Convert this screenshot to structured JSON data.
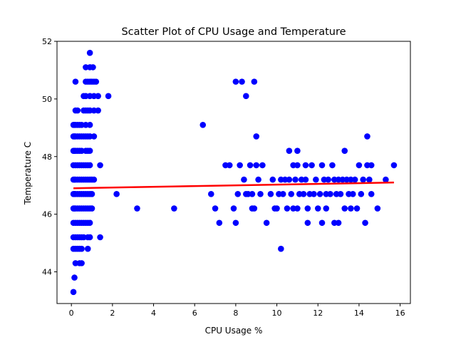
{
  "chart_data": {
    "type": "scatter",
    "title": "Scatter Plot of CPU Usage and Temperature",
    "xlabel": "CPU Usage %",
    "ylabel": "Temperature C",
    "xlim": [
      -0.7,
      16.5
    ],
    "ylim": [
      42.9,
      52.0
    ],
    "xticks": [
      0,
      2,
      4,
      6,
      8,
      10,
      12,
      14,
      16
    ],
    "yticks": [
      44,
      46,
      48,
      50,
      52
    ],
    "grid": false,
    "legend": "none",
    "colors": {
      "points": "#0000ff",
      "trend": "#ff0000",
      "axes": "#000000"
    },
    "series": [
      {
        "type": "scatter",
        "points": [
          [
            0.1,
            43.3
          ],
          [
            0.15,
            43.8
          ],
          [
            0.2,
            44.3
          ],
          [
            0.4,
            44.3
          ],
          [
            0.5,
            44.3
          ],
          [
            0.1,
            44.8
          ],
          [
            0.2,
            44.8
          ],
          [
            0.3,
            44.8
          ],
          [
            0.4,
            44.8
          ],
          [
            0.5,
            44.8
          ],
          [
            0.8,
            44.8
          ],
          [
            0.1,
            45.2
          ],
          [
            0.2,
            45.2
          ],
          [
            0.3,
            45.2
          ],
          [
            0.4,
            45.2
          ],
          [
            0.5,
            45.2
          ],
          [
            0.6,
            45.2
          ],
          [
            0.8,
            45.2
          ],
          [
            0.9,
            45.2
          ],
          [
            1.4,
            45.2
          ],
          [
            0.1,
            45.7
          ],
          [
            0.2,
            45.7
          ],
          [
            0.3,
            45.7
          ],
          [
            0.4,
            45.7
          ],
          [
            0.5,
            45.7
          ],
          [
            0.6,
            45.7
          ],
          [
            0.7,
            45.7
          ],
          [
            0.8,
            45.7
          ],
          [
            0.9,
            45.7
          ],
          [
            0.1,
            46.2
          ],
          [
            0.15,
            46.2
          ],
          [
            0.2,
            46.2
          ],
          [
            0.3,
            46.2
          ],
          [
            0.4,
            46.2
          ],
          [
            0.5,
            46.2
          ],
          [
            0.6,
            46.2
          ],
          [
            0.7,
            46.2
          ],
          [
            0.8,
            46.2
          ],
          [
            0.9,
            46.2
          ],
          [
            1.0,
            46.2
          ],
          [
            0.1,
            46.7
          ],
          [
            0.15,
            46.7
          ],
          [
            0.2,
            46.7
          ],
          [
            0.3,
            46.7
          ],
          [
            0.4,
            46.7
          ],
          [
            0.5,
            46.7
          ],
          [
            0.6,
            46.7
          ],
          [
            0.7,
            46.7
          ],
          [
            0.8,
            46.7
          ],
          [
            0.9,
            46.7
          ],
          [
            1.0,
            46.7
          ],
          [
            0.1,
            47.2
          ],
          [
            0.15,
            47.2
          ],
          [
            0.2,
            47.2
          ],
          [
            0.3,
            47.2
          ],
          [
            0.4,
            47.2
          ],
          [
            0.5,
            47.2
          ],
          [
            0.6,
            47.2
          ],
          [
            0.7,
            47.2
          ],
          [
            0.8,
            47.2
          ],
          [
            0.9,
            47.2
          ],
          [
            1.0,
            47.2
          ],
          [
            1.1,
            47.2
          ],
          [
            0.1,
            47.7
          ],
          [
            0.2,
            47.7
          ],
          [
            0.3,
            47.7
          ],
          [
            0.4,
            47.7
          ],
          [
            0.5,
            47.7
          ],
          [
            0.6,
            47.7
          ],
          [
            0.7,
            47.7
          ],
          [
            0.8,
            47.7
          ],
          [
            0.9,
            47.7
          ],
          [
            1.4,
            47.7
          ],
          [
            0.1,
            48.2
          ],
          [
            0.15,
            48.2
          ],
          [
            0.2,
            48.2
          ],
          [
            0.3,
            48.2
          ],
          [
            0.4,
            48.2
          ],
          [
            0.5,
            48.2
          ],
          [
            0.7,
            48.2
          ],
          [
            0.8,
            48.2
          ],
          [
            0.9,
            48.2
          ],
          [
            0.1,
            48.7
          ],
          [
            0.15,
            48.7
          ],
          [
            0.2,
            48.7
          ],
          [
            0.3,
            48.7
          ],
          [
            0.4,
            48.7
          ],
          [
            0.5,
            48.7
          ],
          [
            0.6,
            48.7
          ],
          [
            0.7,
            48.7
          ],
          [
            0.8,
            48.7
          ],
          [
            0.9,
            48.7
          ],
          [
            1.1,
            48.7
          ],
          [
            0.1,
            49.1
          ],
          [
            0.15,
            49.1
          ],
          [
            0.2,
            49.1
          ],
          [
            0.3,
            49.1
          ],
          [
            0.4,
            49.1
          ],
          [
            0.5,
            49.1
          ],
          [
            0.7,
            49.1
          ],
          [
            0.9,
            49.1
          ],
          [
            0.2,
            49.6
          ],
          [
            0.3,
            49.6
          ],
          [
            0.6,
            49.6
          ],
          [
            0.7,
            49.6
          ],
          [
            0.8,
            49.6
          ],
          [
            0.9,
            49.6
          ],
          [
            1.1,
            49.6
          ],
          [
            1.3,
            49.6
          ],
          [
            0.6,
            50.1
          ],
          [
            0.7,
            50.1
          ],
          [
            0.9,
            50.1
          ],
          [
            1.1,
            50.1
          ],
          [
            1.3,
            50.1
          ],
          [
            1.8,
            50.1
          ],
          [
            0.2,
            50.6
          ],
          [
            0.7,
            50.6
          ],
          [
            0.8,
            50.6
          ],
          [
            0.9,
            50.6
          ],
          [
            1.0,
            50.6
          ],
          [
            1.1,
            50.6
          ],
          [
            1.2,
            50.6
          ],
          [
            0.7,
            51.1
          ],
          [
            0.9,
            51.1
          ],
          [
            1.05,
            51.1
          ],
          [
            0.9,
            51.6
          ],
          [
            2.2,
            46.7
          ],
          [
            3.2,
            46.2
          ],
          [
            5.0,
            46.2
          ],
          [
            6.4,
            49.1
          ],
          [
            6.8,
            46.7
          ],
          [
            7.0,
            46.2
          ],
          [
            7.2,
            45.7
          ],
          [
            7.5,
            47.7
          ],
          [
            7.7,
            47.7
          ],
          [
            7.9,
            46.2
          ],
          [
            8.0,
            45.7
          ],
          [
            8.1,
            46.7
          ],
          [
            8.0,
            50.6
          ],
          [
            8.2,
            47.7
          ],
          [
            8.3,
            50.6
          ],
          [
            8.4,
            47.2
          ],
          [
            8.5,
            50.1
          ],
          [
            8.5,
            46.7
          ],
          [
            8.6,
            46.7
          ],
          [
            8.7,
            47.7
          ],
          [
            8.8,
            46.7
          ],
          [
            8.8,
            46.2
          ],
          [
            8.9,
            50.6
          ],
          [
            8.9,
            46.2
          ],
          [
            9.0,
            47.7
          ],
          [
            9.0,
            48.7
          ],
          [
            9.1,
            47.2
          ],
          [
            9.2,
            46.7
          ],
          [
            9.3,
            47.7
          ],
          [
            9.5,
            45.7
          ],
          [
            9.7,
            46.7
          ],
          [
            9.8,
            47.2
          ],
          [
            9.9,
            46.2
          ],
          [
            10.0,
            46.2
          ],
          [
            10.1,
            46.7
          ],
          [
            10.2,
            47.2
          ],
          [
            10.2,
            44.8
          ],
          [
            10.3,
            46.7
          ],
          [
            10.4,
            47.2
          ],
          [
            10.5,
            46.2
          ],
          [
            10.6,
            47.2
          ],
          [
            10.6,
            48.2
          ],
          [
            10.7,
            46.7
          ],
          [
            10.8,
            47.7
          ],
          [
            10.8,
            46.2
          ],
          [
            10.9,
            47.2
          ],
          [
            11.0,
            46.2
          ],
          [
            11.0,
            48.2
          ],
          [
            11.0,
            47.7
          ],
          [
            11.1,
            46.7
          ],
          [
            11.2,
            47.2
          ],
          [
            11.3,
            46.7
          ],
          [
            11.4,
            47.2
          ],
          [
            11.4,
            47.7
          ],
          [
            11.5,
            46.2
          ],
          [
            11.5,
            45.7
          ],
          [
            11.6,
            46.7
          ],
          [
            11.7,
            47.7
          ],
          [
            11.8,
            46.7
          ],
          [
            11.9,
            47.2
          ],
          [
            12.0,
            46.2
          ],
          [
            12.1,
            46.7
          ],
          [
            12.2,
            47.7
          ],
          [
            12.2,
            45.7
          ],
          [
            12.3,
            47.2
          ],
          [
            12.4,
            46.7
          ],
          [
            12.4,
            46.2
          ],
          [
            12.5,
            47.2
          ],
          [
            12.6,
            46.7
          ],
          [
            12.7,
            47.7
          ],
          [
            12.8,
            47.2
          ],
          [
            12.8,
            45.7
          ],
          [
            12.9,
            46.7
          ],
          [
            13.0,
            47.2
          ],
          [
            13.0,
            45.7
          ],
          [
            13.1,
            46.7
          ],
          [
            13.2,
            47.2
          ],
          [
            13.3,
            48.2
          ],
          [
            13.3,
            46.2
          ],
          [
            13.4,
            47.2
          ],
          [
            13.5,
            46.7
          ],
          [
            13.6,
            47.2
          ],
          [
            13.6,
            46.2
          ],
          [
            13.7,
            46.7
          ],
          [
            13.8,
            47.2
          ],
          [
            13.9,
            46.2
          ],
          [
            14.0,
            47.7
          ],
          [
            14.1,
            46.7
          ],
          [
            14.2,
            47.2
          ],
          [
            14.3,
            45.7
          ],
          [
            14.4,
            48.7
          ],
          [
            14.4,
            47.7
          ],
          [
            14.5,
            47.2
          ],
          [
            14.6,
            46.7
          ],
          [
            14.6,
            47.7
          ],
          [
            14.9,
            46.2
          ],
          [
            15.3,
            47.2
          ],
          [
            15.7,
            47.7
          ]
        ]
      },
      {
        "type": "line",
        "x": [
          0.1,
          15.7
        ],
        "y": [
          46.9,
          47.1
        ]
      }
    ]
  }
}
